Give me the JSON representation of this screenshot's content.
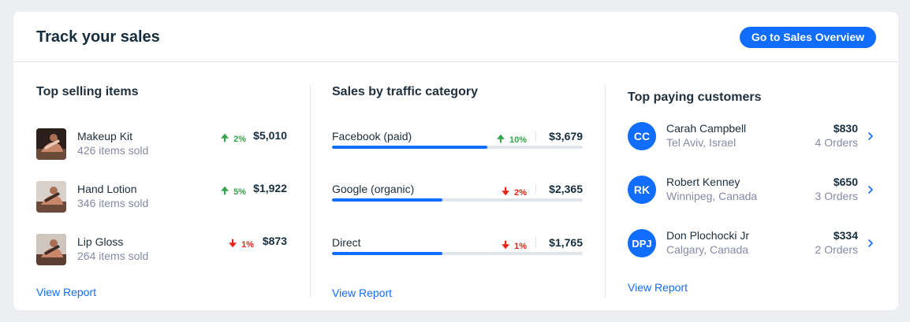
{
  "header": {
    "title": "Track your sales",
    "cta_label": "Go to Sales Overview"
  },
  "top_selling": {
    "title": "Top selling items",
    "items": [
      {
        "name": "Makeup Kit",
        "sold": "426 items sold",
        "trend": "up",
        "change": "2%",
        "amount": "$5,010"
      },
      {
        "name": "Hand Lotion",
        "sold": "346 items sold",
        "trend": "up",
        "change": "5%",
        "amount": "$1,922"
      },
      {
        "name": "Lip Gloss",
        "sold": "264 items sold",
        "trend": "down",
        "change": "1%",
        "amount": "$873"
      }
    ],
    "view_report": "View Report"
  },
  "traffic": {
    "title": "Sales by traffic category",
    "rows": [
      {
        "label": "Facebook (paid)",
        "trend": "up",
        "change": "10%",
        "amount": "$3,679",
        "progress": 0.62
      },
      {
        "label": "Google (organic)",
        "trend": "down",
        "change": "2%",
        "amount": "$2,365",
        "progress": 0.44
      },
      {
        "label": "Direct",
        "trend": "down",
        "change": "1%",
        "amount": "$1,765",
        "progress": 0.44
      }
    ],
    "view_report": "View Report"
  },
  "customers": {
    "title": "Top paying customers",
    "rows": [
      {
        "initials": "CC",
        "name": "Carah Campbell",
        "location": "Tel Aviv, Israel",
        "amount": "$830",
        "orders": "4 Orders"
      },
      {
        "initials": "RK",
        "name": "Robert Kenney",
        "location": "Winnipeg, Canada",
        "amount": "$650",
        "orders": "3 Orders"
      },
      {
        "initials": "DPJ",
        "name": "Don Plochocki Jr",
        "location": "Calgary, Canada",
        "amount": "$334",
        "orders": "2 Orders"
      }
    ],
    "view_report": "View Report"
  },
  "colors": {
    "accent": "#116dff",
    "up": "#35a54c",
    "down": "#e62214",
    "background": "#eceef2",
    "muted_text": "#868aa5"
  },
  "icons": {
    "trend_up": "arrow-up-icon",
    "trend_down": "arrow-down-icon",
    "row_chevron": "chevron-right-icon"
  }
}
